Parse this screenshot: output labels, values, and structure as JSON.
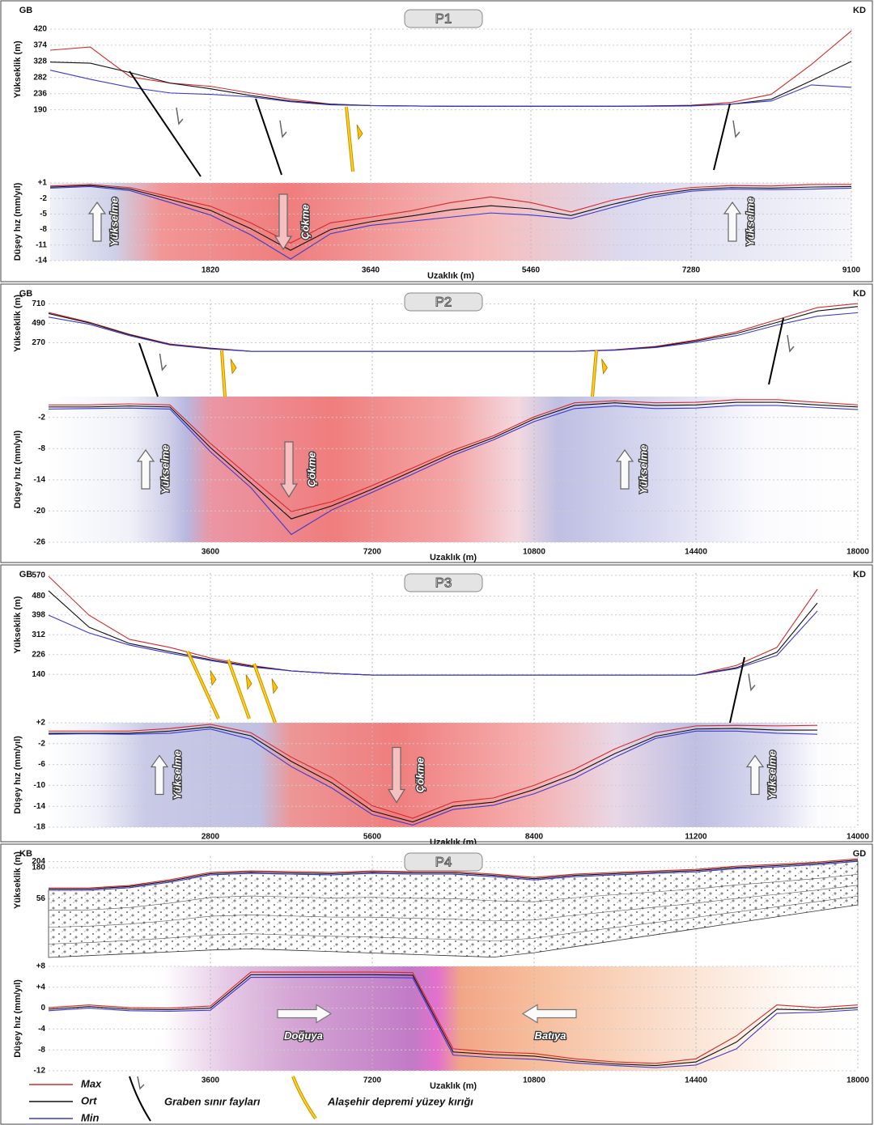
{
  "chart_data": [
    {
      "type": "line",
      "title": "P1",
      "left_label": "GB",
      "right_label": "KD",
      "ylabel": "Yükseklik (m)",
      "x": [
        0,
        455,
        910,
        1365,
        1820,
        2275,
        2730,
        3185,
        3640,
        4095,
        4550,
        5005,
        5460,
        5915,
        6370,
        6825,
        7280,
        7735,
        8190,
        8645,
        9100
      ],
      "xlim": [
        0,
        9100
      ],
      "ylim": [
        0,
        420
      ],
      "yticks": [
        190,
        236,
        282,
        328,
        374,
        420
      ],
      "grid": true,
      "series": [
        {
          "name": "Max",
          "color": "#d42a2a",
          "values": [
            360,
            369,
            284,
            266,
            257,
            238,
            220,
            206,
            202,
            201,
            200,
            200,
            200,
            200,
            200,
            201,
            203,
            211,
            234,
            319,
            415
          ]
        },
        {
          "name": "Ort",
          "color": "#111111",
          "values": [
            326,
            323,
            296,
            266,
            250,
            231,
            215,
            206,
            202,
            201,
            200,
            200,
            200,
            200,
            200,
            201,
            202,
            206,
            220,
            273,
            328
          ]
        },
        {
          "name": "Min",
          "color": "#3a3ad0",
          "values": [
            303,
            277,
            254,
            238,
            234,
            227,
            213,
            204,
            202,
            201,
            200,
            200,
            200,
            200,
            200,
            200,
            201,
            206,
            215,
            261,
            254
          ]
        }
      ]
    },
    {
      "type": "line",
      "ylabel": "Düşey hız (mm/yıl)",
      "xlabel": "Uzaklık (m)",
      "x": [
        0,
        455,
        910,
        1365,
        1820,
        2275,
        2730,
        3185,
        3640,
        4095,
        4550,
        5005,
        5460,
        5915,
        6370,
        6825,
        7280,
        7735,
        8190,
        8645,
        9100
      ],
      "xlim": [
        0,
        9100
      ],
      "xticks": [
        1820,
        3640,
        5460,
        7280,
        9100
      ],
      "ylim": [
        -14,
        1
      ],
      "yticks": [
        {
          "value": 1,
          "label": "+1"
        },
        -2,
        -5,
        -8,
        -11,
        -14
      ],
      "grid": true,
      "annotations": [
        "Yükselme",
        "Çökme",
        "Yükselme"
      ],
      "series": [
        {
          "name": "Max",
          "color": "#d42a2a",
          "values": [
            0.4,
            0.7,
            0.1,
            -1.7,
            -3.5,
            -6.7,
            -10.6,
            -6.7,
            -5.6,
            -4.4,
            -2.8,
            -1.7,
            -2.8,
            -4.6,
            -2.4,
            -0.9,
            0.1,
            0.5,
            0.4,
            0.7,
            0.7
          ]
        },
        {
          "name": "Ort",
          "color": "#111111",
          "values": [
            0.2,
            0.5,
            -0.2,
            -2.2,
            -4.3,
            -7.8,
            -12.0,
            -8.0,
            -6.5,
            -5.4,
            -4.2,
            -3.4,
            -4.0,
            -5.3,
            -3.2,
            -1.4,
            -0.3,
            0.1,
            0.0,
            0.2,
            0.3
          ]
        },
        {
          "name": "Min",
          "color": "#3a3ad0",
          "values": [
            0.0,
            0.3,
            -0.5,
            -2.8,
            -5.2,
            -9.0,
            -13.7,
            -8.8,
            -7.2,
            -6.4,
            -5.6,
            -4.8,
            -5.2,
            -5.9,
            -3.8,
            -1.8,
            -0.6,
            -0.2,
            -0.3,
            -0.2,
            0.0
          ]
        }
      ]
    },
    {
      "type": "line",
      "title": "P2",
      "left_label": "GB",
      "right_label": "KD",
      "ylabel": "Yükseklik (m)",
      "x": [
        0,
        900,
        1800,
        2700,
        3600,
        4500,
        5400,
        6300,
        7200,
        8100,
        9000,
        9900,
        10800,
        11700,
        12600,
        13500,
        14400,
        15300,
        16200,
        17100,
        18000
      ],
      "xlim": [
        0,
        18000
      ],
      "ylim": [
        -340,
        760
      ],
      "yticks": [
        270,
        490,
        710
      ],
      "grid": true,
      "series": [
        {
          "name": "Max",
          "color": "#d42a2a",
          "values": [
            613,
            503,
            366,
            255,
            210,
            173,
            173,
            173,
            173,
            173,
            173,
            173,
            173,
            173,
            191,
            228,
            301,
            393,
            531,
            668,
            714
          ]
        },
        {
          "name": "Ort",
          "color": "#111111",
          "values": [
            600,
            495,
            360,
            250,
            205,
            173,
            173,
            173,
            173,
            173,
            173,
            173,
            173,
            173,
            187,
            222,
            290,
            375,
            500,
            630,
            680
          ]
        },
        {
          "name": "Min",
          "color": "#3a3ad0",
          "values": [
            560,
            480,
            350,
            245,
            200,
            173,
            173,
            173,
            173,
            173,
            173,
            173,
            173,
            173,
            185,
            215,
            275,
            350,
            470,
            570,
            610
          ]
        }
      ]
    },
    {
      "type": "line",
      "ylabel": "Düşey hız (mm/yıl)",
      "xlabel": "Uzaklık (m)",
      "x": [
        0,
        900,
        1800,
        2700,
        3600,
        4500,
        5400,
        6300,
        7200,
        8100,
        9000,
        9900,
        10800,
        11700,
        12600,
        13500,
        14400,
        15300,
        16200,
        17100,
        18000
      ],
      "xlim": [
        0,
        18000
      ],
      "xticks": [
        3600,
        7200,
        10800,
        14400,
        18000
      ],
      "ylim": [
        -26,
        2
      ],
      "yticks": [
        -2,
        -8,
        -14,
        -20,
        -26
      ],
      "grid": true,
      "annotations": [
        "Yükselme",
        "Çökme",
        "Yükselme"
      ],
      "series": [
        {
          "name": "Max",
          "color": "#d42a2a",
          "values": [
            0.4,
            0.4,
            0.6,
            0.4,
            -7.0,
            -13.6,
            -20.1,
            -18.2,
            -15.1,
            -11.7,
            -8.3,
            -5.5,
            -1.9,
            0.8,
            1.2,
            0.8,
            0.9,
            1.4,
            1.4,
            0.9,
            0.4
          ]
        },
        {
          "name": "Ort",
          "color": "#111111",
          "values": [
            0.0,
            0.0,
            0.2,
            0.0,
            -7.8,
            -14.6,
            -21.5,
            -19.0,
            -15.8,
            -12.3,
            -8.8,
            -5.9,
            -2.3,
            0.3,
            0.8,
            0.3,
            0.4,
            0.9,
            0.9,
            0.4,
            0.0
          ]
        },
        {
          "name": "Min",
          "color": "#3a3ad0",
          "values": [
            -0.4,
            -0.3,
            -0.2,
            -0.4,
            -8.6,
            -15.5,
            -24.5,
            -19.8,
            -16.4,
            -12.9,
            -9.3,
            -6.3,
            -2.8,
            -0.3,
            0.2,
            -0.3,
            -0.2,
            0.3,
            0.3,
            -0.1,
            -0.5
          ]
        }
      ]
    },
    {
      "type": "line",
      "title": "P3",
      "left_label": "GB",
      "right_label": "KD",
      "ylabel": "Yükseklik (m)",
      "x": [
        0,
        700,
        1400,
        2100,
        2800,
        3500,
        4200,
        4900,
        5600,
        6300,
        7000,
        7700,
        8400,
        9100,
        9800,
        10500,
        11200,
        11900,
        12600,
        13300
      ],
      "xlim": [
        0,
        14000
      ],
      "ylim": [
        -70,
        580
      ],
      "yticks": [
        140,
        226,
        312,
        398,
        480,
        570
      ],
      "grid": true,
      "series": [
        {
          "name": "Max",
          "color": "#d42a2a",
          "values": [
            566,
            397,
            292,
            257,
            211,
            179,
            155,
            144,
            137,
            137,
            137,
            137,
            137,
            137,
            137,
            137,
            137,
            179,
            257,
            510
          ]
        },
        {
          "name": "Ort",
          "color": "#111111",
          "values": [
            503,
            345,
            274,
            239,
            204,
            176,
            155,
            144,
            137,
            137,
            137,
            137,
            137,
            137,
            137,
            137,
            137,
            169,
            236,
            450
          ]
        },
        {
          "name": "Min",
          "color": "#3a3ad0",
          "values": [
            397,
            320,
            267,
            232,
            200,
            172,
            155,
            144,
            137,
            137,
            137,
            137,
            137,
            137,
            137,
            137,
            137,
            165,
            222,
            415
          ]
        }
      ]
    },
    {
      "type": "line",
      "ylabel": "Düşey hız (mm/yıl)",
      "xlabel": "Uzaklık (m)",
      "x": [
        0,
        700,
        1400,
        2100,
        2800,
        3500,
        4200,
        4900,
        5600,
        6300,
        7000,
        7700,
        8400,
        9100,
        9800,
        10500,
        11200,
        11900,
        12600,
        13300
      ],
      "xlim": [
        0,
        14000
      ],
      "xticks": [
        2800,
        5600,
        8400,
        11200,
        14000
      ],
      "ylim": [
        -18,
        2
      ],
      "yticks": [
        {
          "value": 2,
          "label": "+2"
        },
        -2,
        -6,
        -10,
        -14,
        -18
      ],
      "grid": true,
      "annotations": [
        "Yükselme",
        "Çökme",
        "Yükselme"
      ],
      "series": [
        {
          "name": "Max",
          "color": "#d42a2a",
          "values": [
            0.4,
            0.4,
            0.4,
            0.9,
            1.7,
            0.1,
            -4.6,
            -8.5,
            -13.9,
            -16.3,
            -13.2,
            -12.4,
            -10.0,
            -6.9,
            -3.0,
            0.1,
            1.4,
            1.5,
            1.4,
            1.5
          ]
        },
        {
          "name": "Ort",
          "color": "#111111",
          "values": [
            0.0,
            0.0,
            0.0,
            0.4,
            1.2,
            -0.5,
            -5.4,
            -9.5,
            -14.9,
            -17.0,
            -14.0,
            -13.2,
            -10.8,
            -7.8,
            -3.9,
            -0.6,
            0.8,
            0.9,
            0.6,
            0.6
          ]
        },
        {
          "name": "Min",
          "color": "#3a3ad0",
          "values": [
            -0.2,
            -0.1,
            -0.2,
            0.0,
            0.8,
            -1.2,
            -6.4,
            -10.5,
            -15.6,
            -17.6,
            -14.6,
            -13.8,
            -11.6,
            -8.6,
            -4.6,
            -1.0,
            0.4,
            0.4,
            0.0,
            -0.2
          ]
        }
      ]
    },
    {
      "type": "line",
      "title": "P4",
      "left_label": "KB",
      "right_label": "GD",
      "ylabel": "Yükseklik (m)",
      "x": [
        0,
        900,
        1800,
        2700,
        3600,
        4500,
        5400,
        6300,
        7200,
        8100,
        9000,
        9900,
        10800,
        11700,
        12600,
        13500,
        14400,
        15300,
        16200,
        17100,
        18000
      ],
      "xlim": [
        0,
        18000
      ],
      "ylim": [
        -200,
        225
      ],
      "yticks": [
        56,
        180,
        204
      ],
      "grid": true,
      "series": [
        {
          "name": "Max",
          "color": "#d42a2a",
          "values": [
            99,
            99,
            109,
            132,
            161,
            167,
            164,
            161,
            167,
            164,
            164,
            154,
            141,
            154,
            161,
            167,
            173,
            186,
            193,
            202,
            215
          ]
        },
        {
          "name": "Ort",
          "color": "#111111",
          "values": [
            95,
            95,
            105,
            127,
            156,
            162,
            159,
            156,
            162,
            159,
            159,
            149,
            136,
            149,
            156,
            162,
            168,
            181,
            188,
            197,
            210
          ]
        },
        {
          "name": "Min",
          "color": "#3a3ad0",
          "values": [
            90,
            90,
            100,
            122,
            151,
            157,
            154,
            151,
            157,
            154,
            154,
            144,
            131,
            144,
            151,
            157,
            163,
            176,
            183,
            192,
            205
          ]
        }
      ]
    },
    {
      "type": "line",
      "ylabel": "Düşey hız (mm/yıl)",
      "xlabel": "Uzaklık (m)",
      "x": [
        0,
        900,
        1800,
        2700,
        3600,
        4500,
        5400,
        6300,
        7200,
        8100,
        9000,
        9900,
        10800,
        11700,
        12600,
        13500,
        14400,
        15300,
        16200,
        17100,
        18000
      ],
      "xlim": [
        0,
        18000
      ],
      "xticks": [
        3600,
        7200,
        10800,
        14400,
        18000
      ],
      "ylim": [
        -12,
        8
      ],
      "yticks": [
        {
          "value": 8,
          "label": "+8"
        },
        {
          "value": 4,
          "label": "+4"
        },
        0,
        -4,
        -8,
        -12
      ],
      "grid": true,
      "annotations": [
        "Doğuya",
        "Batıya"
      ],
      "series": [
        {
          "name": "Max",
          "color": "#d42a2a",
          "values": [
            0.1,
            0.6,
            0.1,
            0.0,
            0.4,
            6.9,
            6.9,
            6.9,
            6.9,
            6.8,
            -7.8,
            -8.4,
            -8.7,
            -9.7,
            -10.3,
            -10.6,
            -9.7,
            -5.3,
            0.6,
            0.1,
            0.6
          ]
        },
        {
          "name": "Ort",
          "color": "#111111",
          "values": [
            -0.2,
            0.3,
            -0.2,
            -0.3,
            0.0,
            6.4,
            6.4,
            6.4,
            6.4,
            6.3,
            -8.4,
            -8.9,
            -9.2,
            -10.1,
            -10.7,
            -11.0,
            -10.3,
            -6.5,
            -0.2,
            -0.4,
            0.1
          ]
        },
        {
          "name": "Min",
          "color": "#3a3ad0",
          "values": [
            -0.5,
            0.0,
            -0.5,
            -0.6,
            -0.4,
            5.9,
            5.9,
            5.9,
            5.9,
            5.8,
            -9.0,
            -9.5,
            -9.8,
            -10.5,
            -11.0,
            -11.4,
            -10.9,
            -7.8,
            -1.0,
            -0.8,
            -0.3
          ]
        }
      ]
    }
  ],
  "legend": {
    "items": [
      "Graben sınır fayları",
      "Alaşehir depremi yüzey kırığı"
    ]
  }
}
